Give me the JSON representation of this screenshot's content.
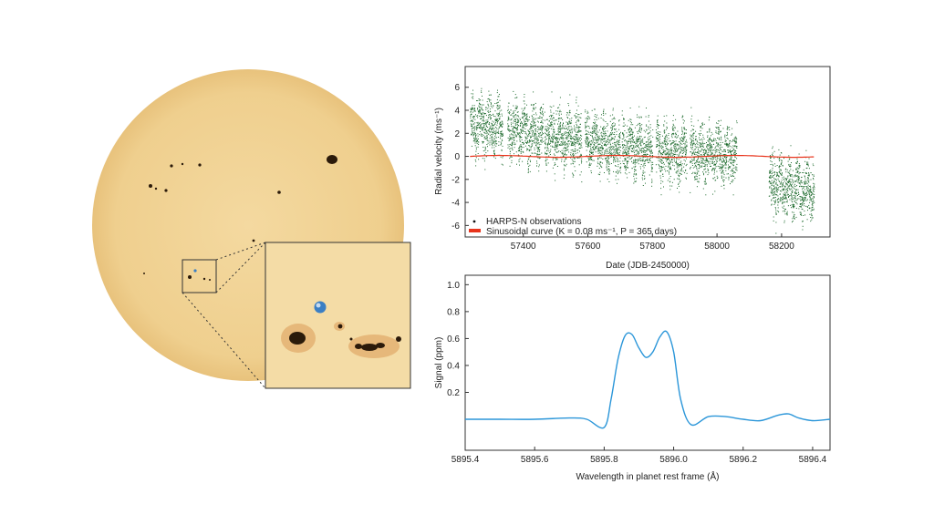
{
  "figure": {
    "sun_image": {
      "disc_color": "#f1d08f",
      "spot_color": "#2b1a0a",
      "earth_color": "#3b7fc4"
    }
  },
  "chart_data": [
    {
      "type": "scatter",
      "title": "",
      "xlabel": "Date (JDB-2450000)",
      "ylabel": "Radial velocity (ms⁻¹)",
      "xlim": [
        57220,
        58350
      ],
      "ylim": [
        -7,
        7.8
      ],
      "xticks": [
        57400,
        57600,
        57800,
        58000,
        58200
      ],
      "yticks": [
        -6,
        -4,
        -2,
        0,
        2,
        4,
        6
      ],
      "grid": false,
      "legend_position": "bottom-left",
      "series": [
        {
          "name": "HARPS-N observations",
          "color": "#1e6b2e",
          "observing_windows": [
            [
              57235,
              57335
            ],
            [
              57350,
              57460
            ],
            [
              57465,
              57580
            ],
            [
              57590,
              57700
            ],
            [
              57705,
              57800
            ],
            [
              57810,
              57905
            ],
            [
              57915,
              58060
            ],
            [
              58160,
              58300
            ]
          ],
          "trend_x": [
            57235,
            57400,
            57600,
            57800,
            58000,
            58060,
            58160,
            58300
          ],
          "trend_y": [
            3.0,
            2.2,
            1.3,
            0.6,
            0.2,
            0.0,
            -2.4,
            -3.0
          ],
          "scatter_amplitude": 2.2
        },
        {
          "name": "Sinusoidal curve (K = 0.08 ms⁻¹, P = 365 days)",
          "color": "#e8341c",
          "K": 0.08,
          "P": 365,
          "x_range": [
            57235,
            58300
          ]
        }
      ]
    },
    {
      "type": "line",
      "title": "",
      "xlabel": "Wavelength in planet rest frame (Å)",
      "ylabel": "Signal (ppm)",
      "xlim": [
        5895.4,
        5896.45
      ],
      "ylim": [
        -0.23,
        1.07
      ],
      "xticks": [
        5895.4,
        5895.6,
        5895.8,
        5896.0,
        5896.2,
        5896.4
      ],
      "yticks": [
        0.2,
        0.4,
        0.6,
        0.8,
        1.0
      ],
      "grid": false,
      "series": [
        {
          "name": "",
          "color": "#2b96d9",
          "x": [
            5895.4,
            5895.5,
            5895.6,
            5895.7,
            5895.75,
            5895.8,
            5895.82,
            5895.84,
            5895.86,
            5895.88,
            5895.9,
            5895.92,
            5895.94,
            5895.96,
            5895.98,
            5896.0,
            5896.02,
            5896.05,
            5896.1,
            5896.15,
            5896.2,
            5896.25,
            5896.3,
            5896.33,
            5896.36,
            5896.4,
            5896.45
          ],
          "y": [
            0.0,
            0.0,
            0.0,
            0.01,
            0.0,
            -0.06,
            0.15,
            0.45,
            0.62,
            0.63,
            0.53,
            0.46,
            0.5,
            0.61,
            0.65,
            0.5,
            0.15,
            -0.04,
            0.02,
            0.02,
            0.0,
            -0.01,
            0.03,
            0.04,
            0.01,
            -0.01,
            0.0
          ]
        }
      ]
    }
  ]
}
